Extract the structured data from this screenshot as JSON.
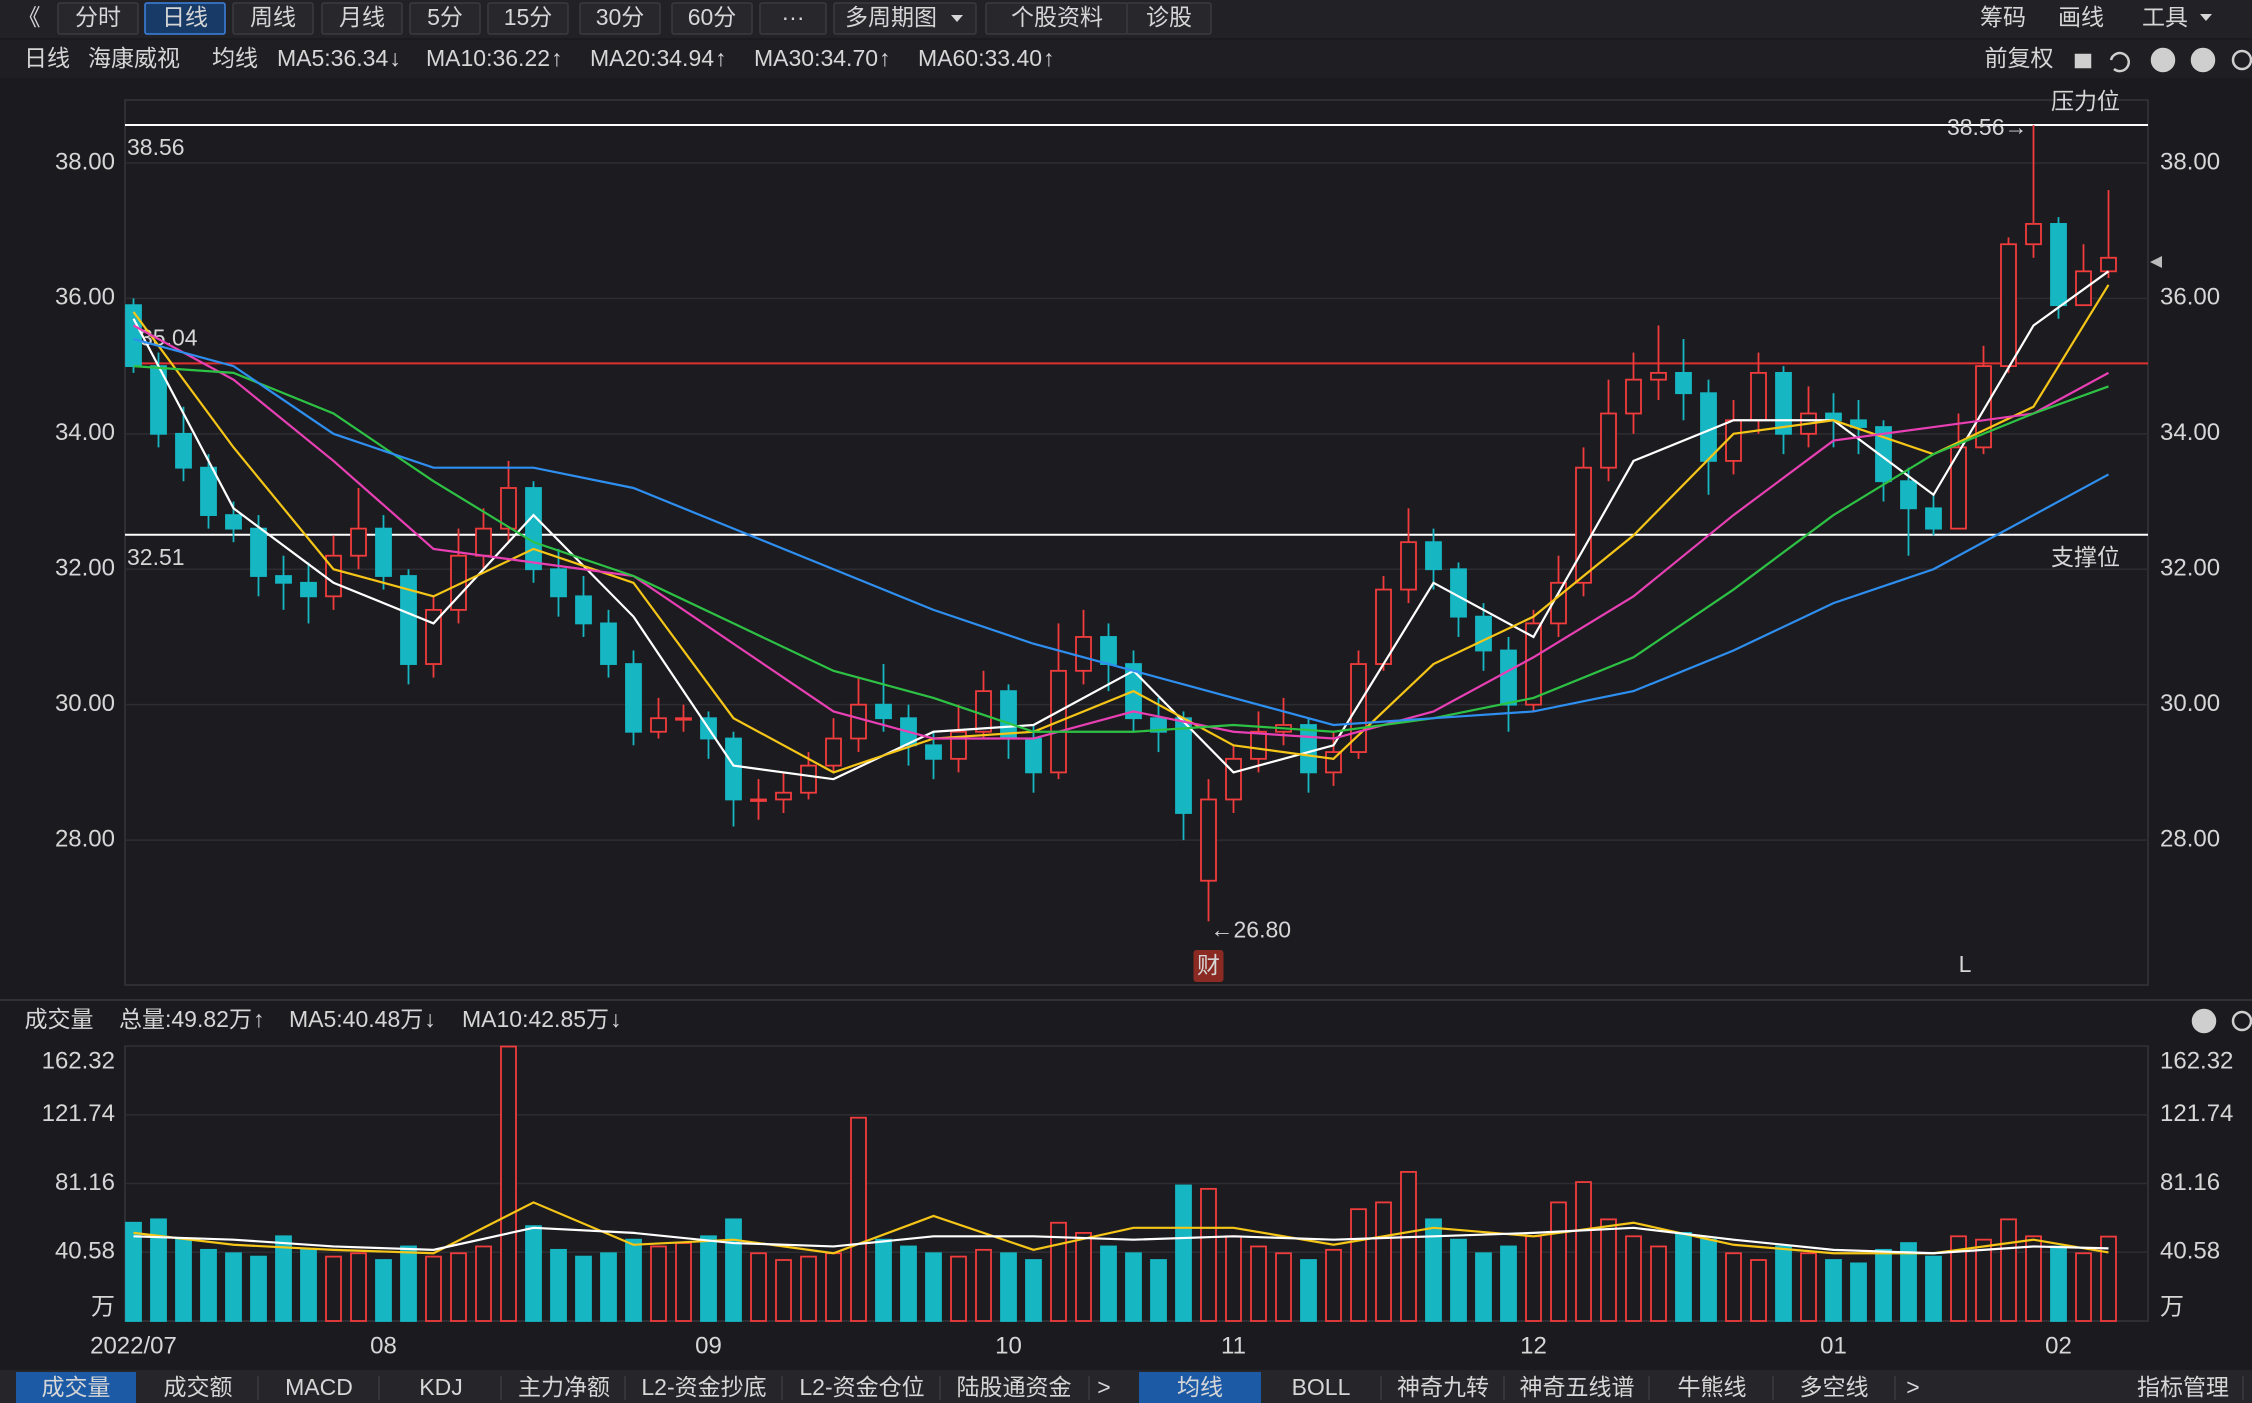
{
  "toolbar": {
    "left": [
      "《",
      "分时",
      "日线",
      "周线",
      "月线",
      "5分",
      "15分",
      "30分",
      "60分",
      "···",
      "多周期图",
      "个股资料",
      "诊股"
    ],
    "right": [
      "筹码",
      "画线",
      "工具"
    ]
  },
  "tabs": [
    "成交量",
    "成交额",
    "MACD",
    "KDJ",
    "主力净额",
    "L2-资金抄底",
    "L2-资金仓位",
    "陆股通资金",
    ">",
    "均线",
    "BOLL",
    "神奇九转",
    "神奇五线谱",
    "牛熊线",
    "多空线",
    ">",
    "指标管理"
  ],
  "chart_data": [
    {
      "type": "candlestick",
      "period": "日线",
      "stock": "海康威视",
      "ma_label": "均线",
      "adjust": "前复权",
      "categories": [
        "2022/07",
        null,
        null,
        null,
        null,
        null,
        null,
        null,
        null,
        null,
        "08",
        null,
        null,
        null,
        null,
        null,
        null,
        null,
        null,
        null,
        null,
        null,
        null,
        "09",
        null,
        null,
        null,
        null,
        null,
        null,
        null,
        null,
        null,
        null,
        null,
        "10",
        null,
        null,
        null,
        null,
        null,
        null,
        null,
        null,
        "11",
        null,
        null,
        null,
        null,
        null,
        null,
        null,
        null,
        null,
        null,
        null,
        "12",
        null,
        null,
        null,
        null,
        null,
        null,
        null,
        null,
        null,
        null,
        null,
        "01",
        null,
        null,
        null,
        null,
        null,
        null,
        null,
        null,
        "02",
        null,
        null
      ],
      "open": [
        35.9,
        35.0,
        34.0,
        33.5,
        32.8,
        32.6,
        31.9,
        31.8,
        31.6,
        32.2,
        32.6,
        31.9,
        30.6,
        31.4,
        32.2,
        32.6,
        33.2,
        32.0,
        31.6,
        31.2,
        30.6,
        29.6,
        29.8,
        29.8,
        29.5,
        28.6,
        28.6,
        28.7,
        29.1,
        29.5,
        30.0,
        29.8,
        29.4,
        29.2,
        29.6,
        30.2,
        29.5,
        29.0,
        30.5,
        31.0,
        30.6,
        29.8,
        29.8,
        27.4,
        28.6,
        29.2,
        29.6,
        29.7,
        29.0,
        29.3,
        30.6,
        31.7,
        32.4,
        32.0,
        31.3,
        30.8,
        30.0,
        31.2,
        31.8,
        33.5,
        34.3,
        34.8,
        34.9,
        34.6,
        33.6,
        34.2,
        34.9,
        34.0,
        34.3,
        34.2,
        34.1,
        33.3,
        32.9,
        32.6,
        33.8,
        35.0,
        36.8,
        37.1,
        35.9,
        36.4
      ],
      "high": [
        36.0,
        35.2,
        34.4,
        33.7,
        33.0,
        32.8,
        32.2,
        32.1,
        32.5,
        33.2,
        32.8,
        32.0,
        31.6,
        32.6,
        32.9,
        33.6,
        33.3,
        32.3,
        31.9,
        31.4,
        30.8,
        30.1,
        30.0,
        29.9,
        29.6,
        28.9,
        29.0,
        29.3,
        29.8,
        30.4,
        30.6,
        30.0,
        29.6,
        30.0,
        30.5,
        30.3,
        29.7,
        31.2,
        31.4,
        31.2,
        30.8,
        30.1,
        29.9,
        28.9,
        29.4,
        29.9,
        30.1,
        29.8,
        29.6,
        30.8,
        31.9,
        32.9,
        32.6,
        32.1,
        31.5,
        31.0,
        31.4,
        32.2,
        33.8,
        34.8,
        35.2,
        35.6,
        35.4,
        34.8,
        34.5,
        35.2,
        35.0,
        34.7,
        34.6,
        34.5,
        34.2,
        33.5,
        33.1,
        34.3,
        35.3,
        36.9,
        38.56,
        37.2,
        36.8,
        37.6
      ],
      "low": [
        34.9,
        33.8,
        33.3,
        32.6,
        32.4,
        31.6,
        31.4,
        31.2,
        31.4,
        32.0,
        31.7,
        30.3,
        30.4,
        31.2,
        32.0,
        32.4,
        31.8,
        31.3,
        31.0,
        30.4,
        29.4,
        29.5,
        29.6,
        29.2,
        28.2,
        28.3,
        28.4,
        28.6,
        29.0,
        29.3,
        29.6,
        29.1,
        28.9,
        29.0,
        29.5,
        29.2,
        28.7,
        28.9,
        30.3,
        30.2,
        29.6,
        29.3,
        28.0,
        26.8,
        28.4,
        29.0,
        29.4,
        28.7,
        28.8,
        29.2,
        30.5,
        31.5,
        31.7,
        31.0,
        30.5,
        29.6,
        29.9,
        31.0,
        31.6,
        33.3,
        34.0,
        34.5,
        34.2,
        33.1,
        33.4,
        34.0,
        33.7,
        33.8,
        33.8,
        33.7,
        33.0,
        32.2,
        32.5,
        32.6,
        33.7,
        34.9,
        36.6,
        35.7,
        35.9,
        36.3
      ],
      "close": [
        35.0,
        34.0,
        33.5,
        32.8,
        32.6,
        31.9,
        31.8,
        31.6,
        32.2,
        32.6,
        31.9,
        30.6,
        31.4,
        32.2,
        32.6,
        33.2,
        32.0,
        31.6,
        31.2,
        30.6,
        29.6,
        29.8,
        29.8,
        29.5,
        28.6,
        28.6,
        28.7,
        29.1,
        29.5,
        30.0,
        29.8,
        29.4,
        29.2,
        29.6,
        30.2,
        29.5,
        29.0,
        30.5,
        31.0,
        30.6,
        29.8,
        29.6,
        28.4,
        28.6,
        29.2,
        29.6,
        29.7,
        29.0,
        29.3,
        30.6,
        31.7,
        32.4,
        32.0,
        31.3,
        30.8,
        30.0,
        31.2,
        31.8,
        33.5,
        34.3,
        34.8,
        34.9,
        34.6,
        33.6,
        34.2,
        34.9,
        34.0,
        34.3,
        34.2,
        34.1,
        33.3,
        32.9,
        32.6,
        33.8,
        35.0,
        36.8,
        37.1,
        35.9,
        36.4,
        36.6
      ],
      "up_color": "#f03c3c",
      "down_color": "#16b6c2",
      "ylim": [
        25.86,
        38.93
      ],
      "yticks": [
        {
          "value": 28,
          "label": "28.00"
        },
        {
          "value": 30,
          "label": "30.00"
        },
        {
          "value": 32,
          "label": "32.00"
        },
        {
          "value": 34,
          "label": "34.00"
        },
        {
          "value": 36,
          "label": "36.00"
        },
        {
          "value": 38,
          "label": "38.00"
        }
      ],
      "grid": true,
      "series": [
        {
          "name": "MA5:36.34",
          "trend": "↓",
          "trend_color": "#25c65a",
          "color": "#ffffff",
          "x": [
            0,
            4,
            8,
            12,
            16,
            20,
            24,
            28,
            32,
            36,
            40,
            44,
            48,
            52,
            56,
            60,
            64,
            68,
            72,
            76,
            79
          ],
          "values": [
            35.7,
            32.9,
            31.8,
            31.2,
            32.8,
            31.3,
            29.1,
            28.9,
            29.6,
            29.7,
            30.5,
            29.0,
            29.4,
            31.8,
            31.0,
            33.6,
            34.2,
            34.2,
            33.1,
            35.6,
            36.4
          ]
        },
        {
          "name": "MA10:36.22",
          "trend": "↑",
          "trend_color": "#ff3b3b",
          "color": "#f5c518",
          "x": [
            0,
            4,
            8,
            12,
            16,
            20,
            24,
            28,
            32,
            36,
            40,
            44,
            48,
            52,
            56,
            60,
            64,
            68,
            72,
            76,
            79
          ],
          "values": [
            35.8,
            33.8,
            32.0,
            31.6,
            32.3,
            31.8,
            29.8,
            29.0,
            29.5,
            29.6,
            30.2,
            29.4,
            29.2,
            30.6,
            31.3,
            32.5,
            34.0,
            34.2,
            33.7,
            34.4,
            36.2
          ]
        },
        {
          "name": "MA20:34.94",
          "trend": "↑",
          "trend_color": "#ff3b3b",
          "color": "#e840b4",
          "x": [
            0,
            4,
            8,
            12,
            16,
            20,
            24,
            28,
            32,
            36,
            40,
            44,
            48,
            52,
            56,
            60,
            64,
            68,
            72,
            76,
            79
          ],
          "values": [
            35.6,
            34.8,
            33.6,
            32.3,
            32.1,
            31.9,
            30.9,
            29.9,
            29.5,
            29.5,
            29.9,
            29.6,
            29.5,
            29.9,
            30.7,
            31.6,
            32.8,
            33.9,
            34.1,
            34.3,
            34.9
          ]
        },
        {
          "name": "MA30:34.70",
          "trend": "↑",
          "trend_color": "#ff3b3b",
          "color": "#2ec245",
          "x": [
            0,
            4,
            8,
            12,
            16,
            20,
            24,
            28,
            32,
            36,
            40,
            44,
            48,
            52,
            56,
            60,
            64,
            68,
            72,
            76,
            79
          ],
          "values": [
            35.0,
            34.9,
            34.3,
            33.3,
            32.4,
            31.9,
            31.2,
            30.5,
            30.1,
            29.6,
            29.6,
            29.7,
            29.6,
            29.8,
            30.1,
            30.7,
            31.7,
            32.8,
            33.7,
            34.3,
            34.7
          ]
        },
        {
          "name": "MA60:33.40",
          "trend": "↑",
          "trend_color": "#ff3b3b",
          "color": "#2e8ff0",
          "x": [
            0,
            4,
            8,
            12,
            16,
            20,
            24,
            28,
            32,
            36,
            40,
            44,
            48,
            52,
            56,
            60,
            64,
            68,
            72,
            76,
            79
          ],
          "values": [
            35.4,
            35.0,
            34.0,
            33.5,
            33.5,
            33.2,
            32.6,
            32.0,
            31.4,
            30.9,
            30.5,
            30.1,
            29.7,
            29.8,
            29.9,
            30.2,
            30.8,
            31.5,
            32.0,
            32.8,
            33.4
          ]
        }
      ],
      "lines": [
        {
          "value": 38.56,
          "label": "38.56",
          "note": "压力位",
          "color": "#ffffff"
        },
        {
          "value": 35.04,
          "label": "35.04",
          "color": "#e03030"
        },
        {
          "value": 32.51,
          "label": "32.51",
          "note": "支撑位",
          "color": "#ffffff"
        }
      ],
      "high_label": "38.56→",
      "low_label": "←26.80",
      "badges": [
        "财",
        "L"
      ]
    },
    {
      "type": "bar",
      "name": "成交量",
      "total": "总量:49.82万",
      "total_trend": "↑",
      "total_trend_color": "#ff3b3b",
      "unit": "万",
      "values": [
        58,
        60,
        48,
        42,
        40,
        38,
        50,
        42,
        38,
        40,
        36,
        44,
        38,
        40,
        44,
        162,
        56,
        42,
        38,
        40,
        48,
        44,
        46,
        50,
        60,
        40,
        36,
        38,
        40,
        120,
        48,
        44,
        40,
        38,
        42,
        40,
        36,
        58,
        52,
        44,
        40,
        36,
        80,
        78,
        50,
        44,
        40,
        36,
        42,
        66,
        70,
        88,
        60,
        48,
        40,
        44,
        50,
        70,
        82,
        60,
        50,
        44,
        52,
        48,
        40,
        36,
        44,
        40,
        36,
        34,
        42,
        46,
        38,
        50,
        48,
        60,
        50,
        44,
        40,
        49.82
      ],
      "ylim": [
        0,
        162.32
      ],
      "yticks": [
        40.58,
        81.16,
        121.74,
        162.32
      ],
      "grid": true,
      "series": [
        {
          "name": "MA5:40.48万",
          "trend": "↓",
          "trend_color": "#25c65a",
          "color": "#f5c518",
          "x": [
            0,
            4,
            8,
            12,
            16,
            20,
            24,
            28,
            32,
            36,
            40,
            44,
            48,
            52,
            56,
            60,
            64,
            68,
            72,
            76,
            79
          ],
          "values": [
            52,
            45,
            42,
            40,
            70,
            45,
            48,
            40,
            62,
            42,
            55,
            55,
            45,
            55,
            50,
            58,
            45,
            40,
            40,
            48,
            40.48
          ]
        },
        {
          "name": "MA10:42.85万",
          "trend": "↓",
          "trend_color": "#25c65a",
          "color": "#ffffff",
          "x": [
            0,
            4,
            8,
            12,
            16,
            20,
            24,
            28,
            32,
            36,
            40,
            44,
            48,
            52,
            56,
            60,
            64,
            68,
            72,
            76,
            79
          ],
          "values": [
            50,
            48,
            44,
            42,
            55,
            52,
            46,
            44,
            50,
            50,
            48,
            50,
            48,
            50,
            52,
            55,
            48,
            42,
            40,
            44,
            42.85
          ]
        }
      ]
    }
  ]
}
